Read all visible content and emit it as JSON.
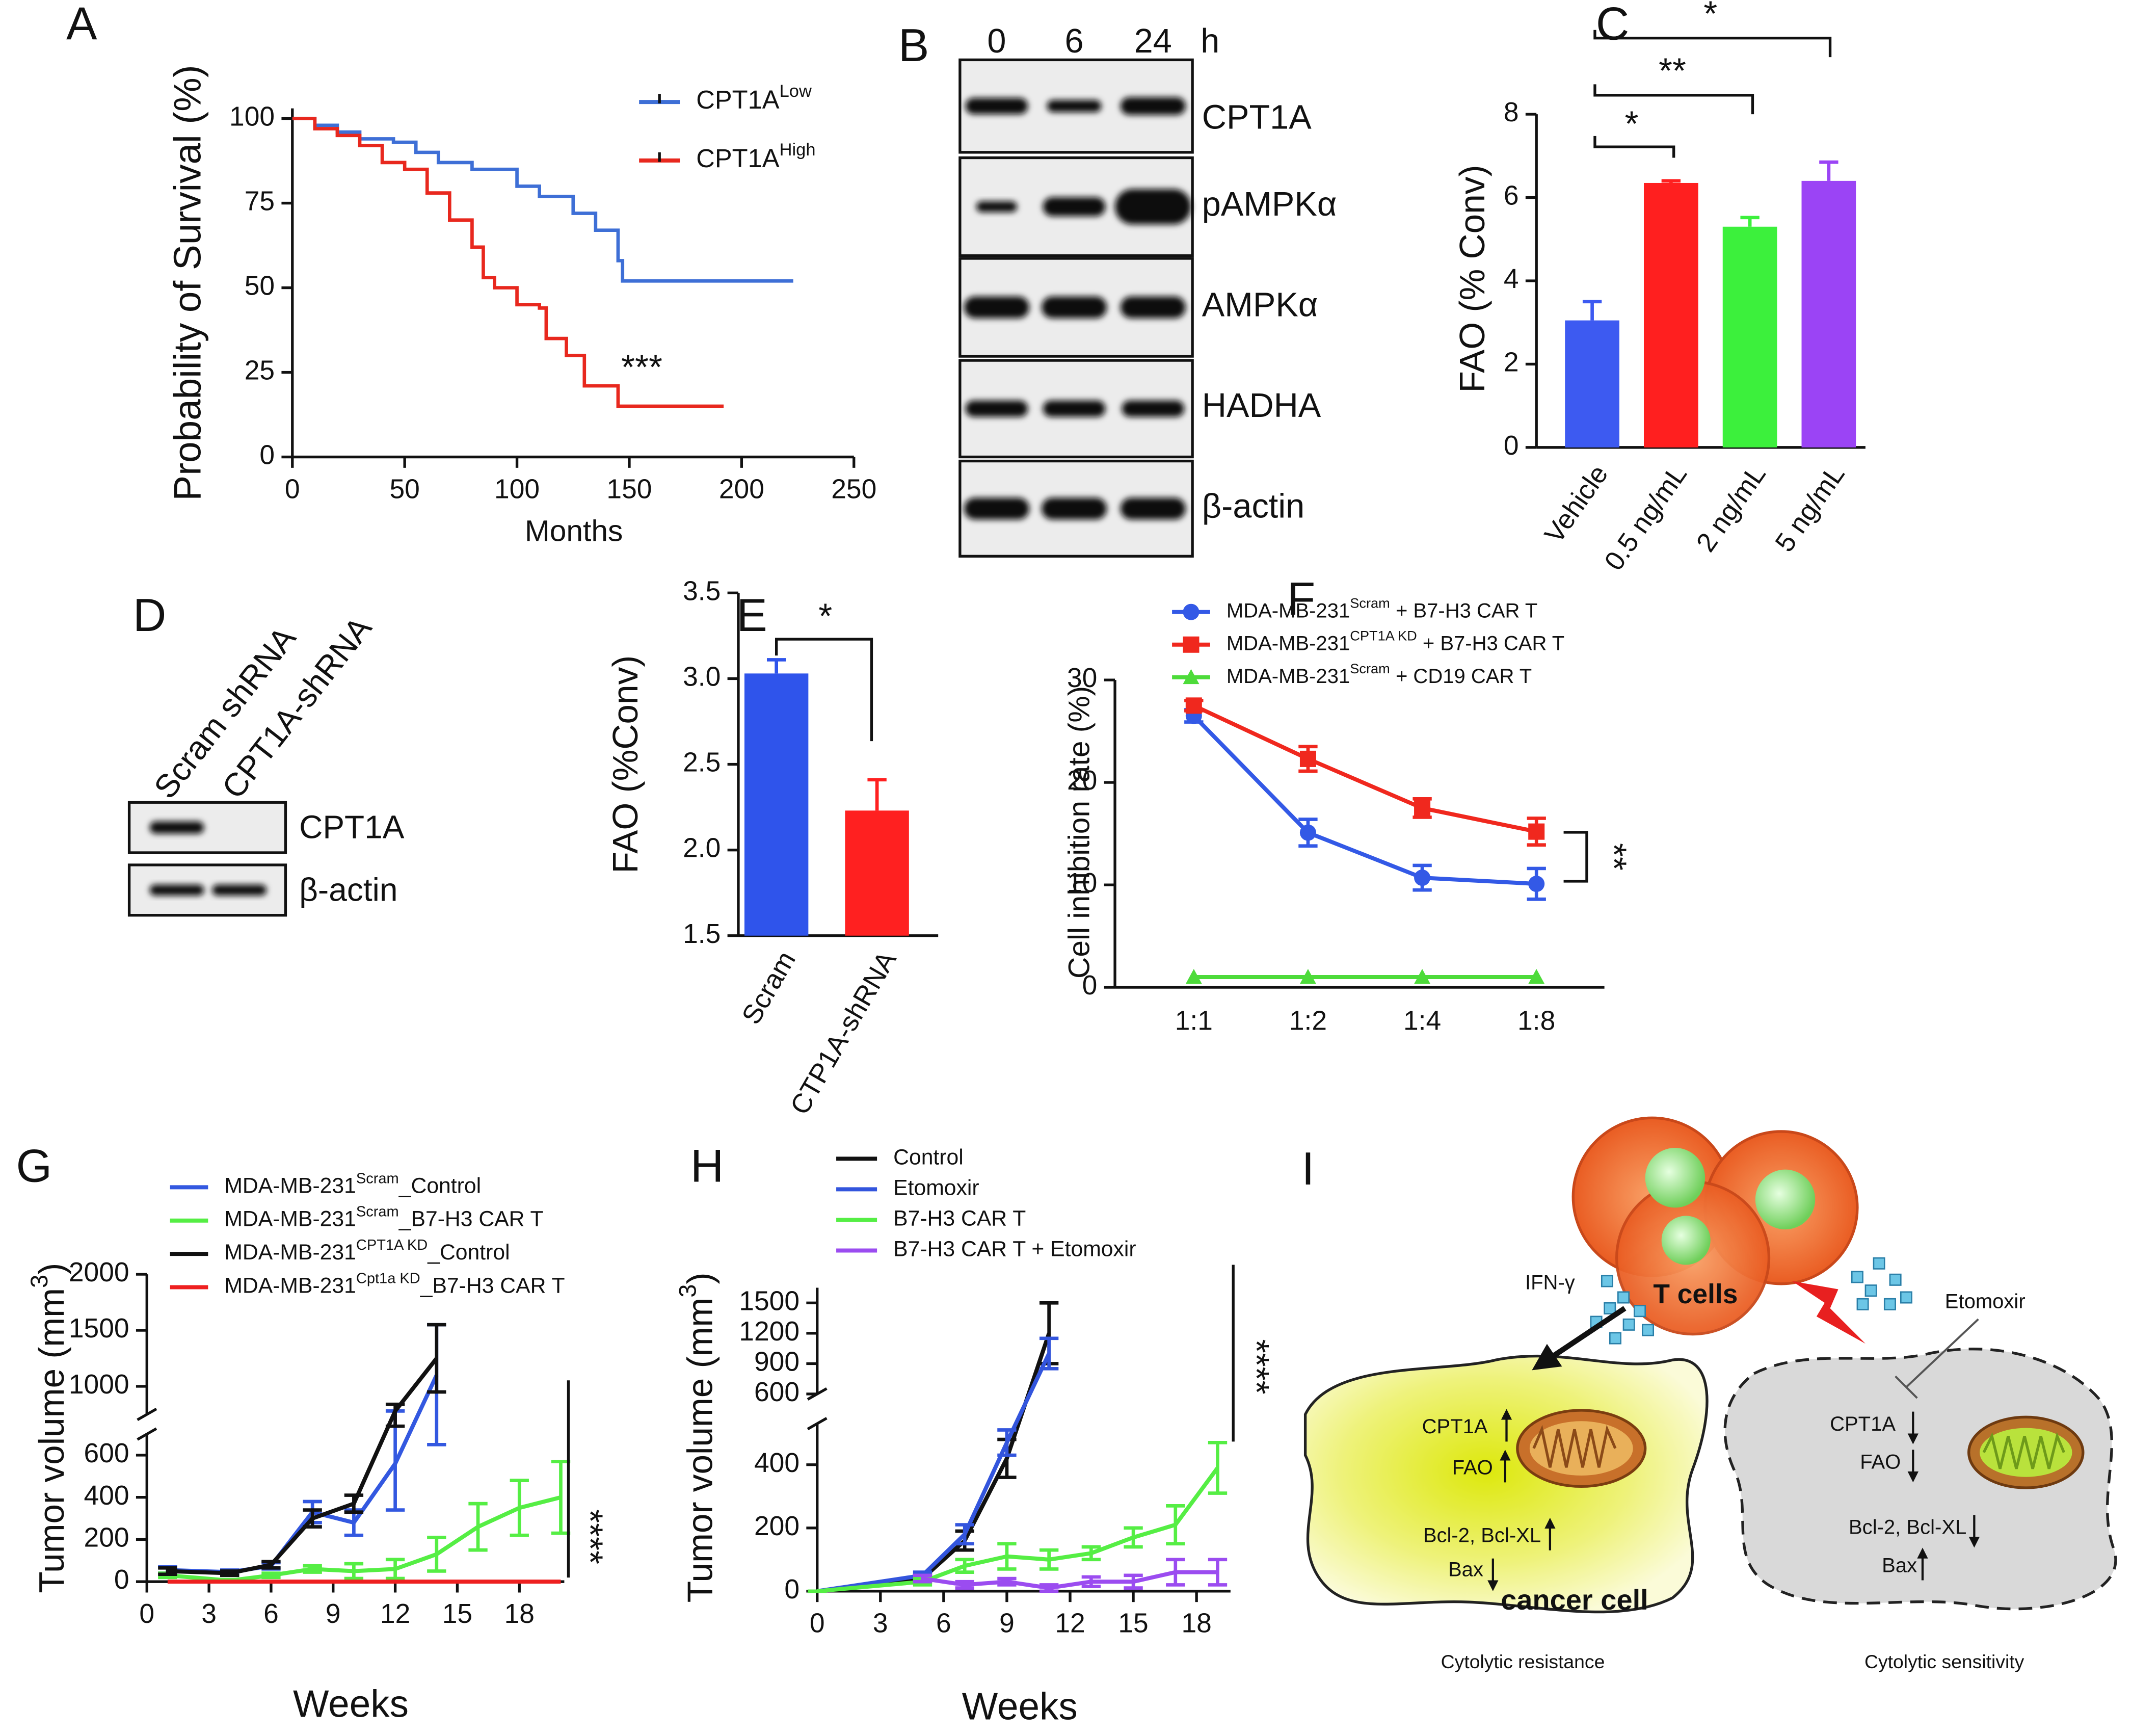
{
  "panels": [
    "A",
    "B",
    "C",
    "D",
    "E",
    "F",
    "G",
    "H",
    "I"
  ],
  "blots": [
    {
      "lanes": [
        "0",
        "6",
        "24"
      ],
      "unit": "h",
      "rows": [
        "CPT1A",
        "pAMPKα",
        "AMPKα",
        "HADHA",
        "β-actin"
      ]
    },
    {
      "lanes": [
        "Scram shRNA",
        "CPT1A-shRNA"
      ],
      "rows": [
        "CPT1A",
        "β-actin"
      ]
    }
  ],
  "diagram": {
    "labels": [
      "IFN-γ",
      "T cells",
      "Etomoxir",
      "CPT1A",
      "FAO",
      "Bcl-2, Bcl-XL",
      "Bax",
      "cancer cell",
      "Cytolytic resistance",
      "CPT1A",
      "FAO",
      "Bcl-2, Bcl-XL",
      "Bax",
      "Cytolytic sensitivity"
    ]
  },
  "chart_data": [
    {
      "type": "step",
      "xlabel": "Months",
      "ylabel": "Probability of Survival (%)",
      "xlim": [
        0,
        250
      ],
      "xticks": [
        0,
        50,
        100,
        150,
        200,
        250
      ],
      "ylim": [
        0,
        103
      ],
      "yticks": [
        0,
        25,
        50,
        75,
        100
      ],
      "series": [
        {
          "name": "CPT1A",
          "name_sup": "Low",
          "color": "#3e6fd6",
          "x": [
            0,
            10,
            20,
            30,
            45,
            55,
            65,
            80,
            100,
            110,
            125,
            135,
            145,
            147,
            223
          ],
          "values": [
            100,
            98,
            96,
            94,
            93,
            90,
            87,
            85,
            80,
            77,
            72,
            67,
            58,
            52,
            52
          ]
        },
        {
          "name": "CPT1A",
          "name_sup": "High",
          "color": "#e8281e",
          "x": [
            0,
            10,
            20,
            30,
            40,
            50,
            60,
            70,
            80,
            85,
            90,
            100,
            110,
            113,
            122,
            130,
            145,
            192
          ],
          "values": [
            100,
            97,
            95,
            92,
            87,
            85,
            78,
            70,
            62,
            53,
            50,
            45,
            44,
            35,
            30,
            21,
            15,
            15
          ]
        }
      ],
      "annotations": [
        {
          "text": "***"
        }
      ]
    },
    {
      "type": "bar",
      "ylabel": "FAO (% Conv)",
      "categories": [
        "Vehicle",
        "0.5 ng/mL",
        "2 ng/mL",
        "5 ng/mL"
      ],
      "values": [
        3.05,
        6.35,
        5.3,
        6.4
      ],
      "errors": [
        0.45,
        0.05,
        0.22,
        0.45
      ],
      "colors": [
        "#3d5af1",
        "#ff1f1f",
        "#3cf03c",
        "#9b44f5"
      ],
      "ylim": [
        0,
        8
      ],
      "yticks": [
        0,
        2,
        4,
        6,
        8
      ],
      "annotations": [
        {
          "text": "*"
        },
        {
          "text": "**"
        },
        {
          "text": "*"
        }
      ]
    },
    {
      "type": "bar",
      "ylabel": "FAO (%Conv)",
      "categories": [
        "Scram",
        "CTP1A-shRNA"
      ],
      "values": [
        3.03,
        2.23
      ],
      "errors": [
        0.08,
        0.18
      ],
      "colors": [
        "#2f54eb",
        "#ff2020"
      ],
      "ylim": [
        1.5,
        3.5
      ],
      "yticks": [
        1.5,
        {
          "value": 2,
          "label": "2.0"
        },
        2.5,
        {
          "value": 3,
          "label": "3.0"
        },
        3.5
      ],
      "annotations": [
        {
          "text": "*"
        }
      ]
    },
    {
      "type": "line",
      "ylabel": "Cell inhibition rate (%)",
      "categories": [
        "1:1",
        "1:2",
        "1:4",
        "1:8"
      ],
      "ylim": [
        0,
        30
      ],
      "yticks": [
        0,
        10,
        20,
        30
      ],
      "series": [
        {
          "name": "MDA-MB-231",
          "name_sup": "Scram",
          "name_suffix": " + B7-H3 CAR T",
          "color": "#3359e6",
          "marker": "circle",
          "values": [
            26.5,
            15.1,
            10.7,
            10.1
          ],
          "errors": [
            0.6,
            1.3,
            1.2,
            1.5
          ]
        },
        {
          "name": "MDA-MB-231",
          "name_sup": "CPT1A KD",
          "name_suffix": " + B7-H3 CAR T",
          "color": "#f0281e",
          "marker": "square",
          "values": [
            27.5,
            22.3,
            17.5,
            15.2
          ],
          "errors": [
            0.5,
            1.2,
            0.9,
            1.3
          ]
        },
        {
          "name": "MDA-MB-231",
          "name_sup": "Scram",
          "name_suffix": " + CD19 CAR T",
          "color": "#4ddb3a",
          "marker": "triangle",
          "values": [
            1,
            1,
            1,
            1
          ]
        }
      ],
      "annotations": [
        {
          "text": "**"
        }
      ]
    },
    {
      "type": "line",
      "xlabel": "Weeks",
      "ylabel": "Tumor volume (mm",
      "ylabel_sup": "3",
      "ylabel_suffix": ")",
      "xlim": [
        0,
        20
      ],
      "xticks": [
        0,
        3,
        6,
        9,
        12,
        15,
        18
      ],
      "ylim": [
        0,
        2000
      ],
      "y_break": [
        700,
        750
      ],
      "yticks": [
        0,
        200,
        400,
        600,
        1000,
        1500,
        2000
      ],
      "series": [
        {
          "name": "MDA-MB-231",
          "name_sup": "Scram",
          "name_suffix": "_Control",
          "color": "#3358e0",
          "x": [
            1,
            4,
            6,
            8,
            10,
            12,
            14
          ],
          "values": [
            55,
            45,
            75,
            330,
            280,
            560,
            1100
          ],
          "errors": [
            15,
            10,
            15,
            50,
            60,
            220,
            450
          ]
        },
        {
          "name": "MDA-MB-231",
          "name_sup": "Scram",
          "name_suffix": "_B7-H3 CAR T",
          "color": "#55ee44",
          "x": [
            1,
            4,
            6,
            8,
            10,
            12,
            14,
            16,
            18,
            20
          ],
          "values": [
            30,
            5,
            30,
            60,
            50,
            60,
            130,
            260,
            350,
            400
          ],
          "errors": [
            10,
            5,
            10,
            15,
            35,
            45,
            80,
            110,
            130,
            170
          ]
        },
        {
          "name": "MDA-MB-231",
          "name_sup": "CPT1A KD",
          "name_suffix": "_Control",
          "color": "#111111",
          "x": [
            1,
            4,
            6,
            8,
            10,
            12,
            14
          ],
          "values": [
            50,
            40,
            80,
            300,
            370,
            780,
            1250
          ],
          "errors": [
            15,
            10,
            15,
            40,
            40,
            60,
            300
          ]
        },
        {
          "name": "MDA-MB-231",
          "name_sup": "Cpt1a KD",
          "name_suffix": "_B7-H3 CAR T",
          "color": "#ee2020",
          "x": [
            1,
            4,
            6,
            8,
            10,
            12,
            14,
            16,
            18,
            20
          ],
          "values": [
            0,
            0,
            0,
            0,
            0,
            0,
            0,
            0,
            0,
            0
          ]
        }
      ],
      "annotations": [
        {
          "text": "****"
        }
      ]
    },
    {
      "type": "line",
      "xlabel": "Weeks",
      "ylabel": "Tumor volume (mm",
      "ylabel_sup": "3",
      "ylabel_suffix": ")",
      "xlim": [
        0,
        19.6
      ],
      "xticks": [
        0,
        3,
        6,
        9,
        12,
        15,
        18
      ],
      "ylim": [
        0,
        1650
      ],
      "y_break": [
        530,
        600
      ],
      "yticks": [
        0,
        200,
        400,
        600,
        900,
        1200,
        1500
      ],
      "series": [
        {
          "name": "Control",
          "color": "#111111",
          "x": [
            0,
            5,
            7,
            9,
            11
          ],
          "values": [
            0,
            40,
            160,
            420,
            1200
          ],
          "errors": [
            0,
            10,
            30,
            60,
            300
          ]
        },
        {
          "name": "Etomoxir",
          "color": "#3355dd",
          "x": [
            0,
            5,
            7,
            9,
            11
          ],
          "values": [
            0,
            50,
            180,
            470,
            1000
          ],
          "errors": [
            0,
            10,
            30,
            40,
            150
          ]
        },
        {
          "name": "B7-H3 CAR T",
          "color": "#55ee44",
          "x": [
            0,
            5,
            7,
            9,
            11,
            13,
            15,
            17,
            19
          ],
          "values": [
            0,
            30,
            80,
            110,
            100,
            120,
            170,
            210,
            390
          ],
          "errors": [
            0,
            10,
            20,
            40,
            30,
            20,
            30,
            60,
            80
          ]
        },
        {
          "name": "B7-H3 CAR T + Etomoxir",
          "color": "#9b4cf0",
          "x": [
            5,
            7,
            9,
            11,
            13,
            15,
            17,
            19
          ],
          "values": [
            40,
            20,
            30,
            10,
            30,
            30,
            60,
            60
          ],
          "errors": [
            10,
            10,
            10,
            10,
            15,
            20,
            40,
            40
          ]
        }
      ],
      "annotations": [
        {
          "text": "****"
        }
      ]
    }
  ]
}
